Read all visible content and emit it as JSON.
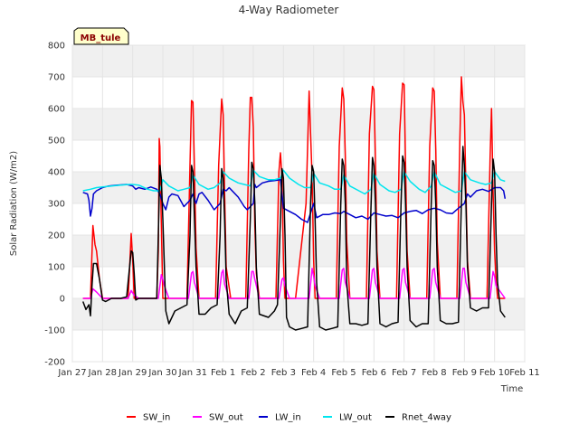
{
  "chart_data": {
    "type": "line",
    "title": "4-Way Radiometer",
    "xlabel": "Time",
    "ylabel": "Solar Radiation (W/m2)",
    "site_label": "MB_tule",
    "xlim": [
      0,
      15
    ],
    "ylim": [
      -200,
      800
    ],
    "yticks": [
      -200,
      -100,
      0,
      100,
      200,
      300,
      400,
      500,
      600,
      700,
      800
    ],
    "xticks": [
      {
        "value": 0,
        "label": "Jan 27"
      },
      {
        "value": 1,
        "label": "Jan 28"
      },
      {
        "value": 2,
        "label": "Jan 29"
      },
      {
        "value": 3,
        "label": "Jan 30"
      },
      {
        "value": 4,
        "label": "Jan 31"
      },
      {
        "value": 5,
        "label": "Feb 1"
      },
      {
        "value": 6,
        "label": "Feb 2"
      },
      {
        "value": 7,
        "label": "Feb 3"
      },
      {
        "value": 8,
        "label": "Feb 4"
      },
      {
        "value": 9,
        "label": "Feb 5"
      },
      {
        "value": 10,
        "label": "Feb 6"
      },
      {
        "value": 11,
        "label": "Feb 7"
      },
      {
        "value": 12,
        "label": "Feb 8"
      },
      {
        "value": 13,
        "label": "Feb 9"
      },
      {
        "value": 14,
        "label": "Feb 10"
      },
      {
        "value": 15,
        "label": "Feb 11"
      }
    ],
    "grid": true,
    "legend_position": "bottom",
    "series": [
      {
        "name": "SW_in",
        "color": "#ff0000",
        "x": [
          0.35,
          0.6,
          0.68,
          0.75,
          0.8,
          0.9,
          1.0,
          1.1,
          1.5,
          1.85,
          1.95,
          2.0,
          2.05,
          2.15,
          2.3,
          2.6,
          2.8,
          2.85,
          2.88,
          2.9,
          2.95,
          3.0,
          3.05,
          3.1,
          3.2,
          3.4,
          3.8,
          3.9,
          3.95,
          4.0,
          4.05,
          4.1,
          4.2,
          4.4,
          4.75,
          4.85,
          4.95,
          5.0,
          5.05,
          5.1,
          5.25,
          5.4,
          5.75,
          5.85,
          5.9,
          5.95,
          6.0,
          6.05,
          6.1,
          6.2,
          6.4,
          6.75,
          6.85,
          6.9,
          6.95,
          7.0,
          7.05,
          7.1,
          7.2,
          7.4,
          7.75,
          7.85,
          7.95,
          8.0,
          8.05,
          8.1,
          8.2,
          8.4,
          8.75,
          8.85,
          8.95,
          9.0,
          9.05,
          9.1,
          9.2,
          9.4,
          9.75,
          9.85,
          9.95,
          10.0,
          10.05,
          10.1,
          10.2,
          10.4,
          10.75,
          10.85,
          10.95,
          11.0,
          11.05,
          11.1,
          11.2,
          11.4,
          11.75,
          11.85,
          11.95,
          12.0,
          12.05,
          12.1,
          12.2,
          12.4,
          12.75,
          12.85,
          12.9,
          12.95,
          13.0,
          13.05,
          13.1,
          13.2,
          13.4,
          13.75,
          13.85,
          13.9,
          13.95,
          14.0,
          14.05,
          14.1,
          14.2,
          14.35
        ],
        "y": [
          0,
          0,
          230,
          170,
          150,
          60,
          0,
          0,
          0,
          0,
          205,
          120,
          0,
          0,
          0,
          0,
          0,
          150,
          505,
          480,
          240,
          0,
          0,
          0,
          0,
          0,
          0,
          420,
          625,
          620,
          400,
          160,
          0,
          0,
          0,
          420,
          630,
          580,
          330,
          100,
          0,
          0,
          0,
          470,
          635,
          635,
          540,
          230,
          80,
          0,
          0,
          0,
          400,
          460,
          380,
          120,
          0,
          0,
          0,
          0,
          300,
          655,
          380,
          120,
          0,
          0,
          0,
          0,
          0,
          480,
          665,
          630,
          450,
          180,
          0,
          0,
          0,
          520,
          670,
          660,
          440,
          150,
          0,
          0,
          0,
          520,
          680,
          675,
          420,
          150,
          0,
          0,
          0,
          480,
          665,
          655,
          470,
          180,
          0,
          0,
          0,
          500,
          700,
          620,
          580,
          350,
          120,
          0,
          0,
          0,
          440,
          600,
          340,
          150,
          60,
          0,
          0,
          0
        ]
      },
      {
        "name": "SW_out",
        "color": "#ff00ff",
        "x": [
          0.35,
          0.6,
          0.68,
          0.8,
          1.0,
          1.2,
          1.85,
          1.95,
          2.05,
          2.2,
          2.85,
          2.95,
          3.0,
          3.05,
          3.2,
          3.85,
          3.95,
          4.0,
          4.05,
          4.2,
          4.85,
          4.95,
          5.0,
          5.05,
          5.2,
          5.85,
          5.95,
          6.0,
          6.05,
          6.2,
          6.85,
          6.95,
          7.0,
          7.05,
          7.2,
          7.85,
          7.95,
          8.0,
          8.05,
          8.2,
          8.85,
          8.95,
          9.0,
          9.05,
          9.2,
          9.85,
          9.95,
          10.0,
          10.05,
          10.2,
          10.85,
          10.95,
          11.0,
          11.05,
          11.2,
          11.85,
          11.95,
          12.0,
          12.05,
          12.2,
          12.85,
          12.95,
          13.0,
          13.05,
          13.2,
          13.85,
          13.95,
          14.0,
          14.05,
          14.35
        ],
        "y": [
          0,
          0,
          30,
          20,
          0,
          0,
          0,
          25,
          10,
          0,
          0,
          75,
          60,
          40,
          0,
          0,
          80,
          85,
          50,
          0,
          0,
          80,
          90,
          45,
          0,
          0,
          85,
          85,
          60,
          0,
          0,
          60,
          65,
          40,
          0,
          0,
          95,
          70,
          40,
          0,
          0,
          90,
          95,
          50,
          0,
          0,
          90,
          95,
          50,
          0,
          0,
          90,
          95,
          50,
          0,
          0,
          90,
          95,
          50,
          0,
          0,
          95,
          95,
          50,
          0,
          0,
          85,
          70,
          40,
          0
        ]
      },
      {
        "name": "LW_in",
        "color": "#0000cc",
        "x": [
          0.35,
          0.5,
          0.55,
          0.6,
          0.65,
          0.7,
          0.8,
          1.0,
          1.2,
          1.5,
          1.8,
          2.0,
          2.1,
          2.2,
          2.4,
          2.6,
          2.8,
          2.9,
          3.0,
          3.1,
          3.2,
          3.3,
          3.5,
          3.7,
          3.9,
          4.0,
          4.1,
          4.2,
          4.3,
          4.5,
          4.7,
          4.9,
          5.0,
          5.1,
          5.2,
          5.5,
          5.7,
          5.8,
          6.0,
          6.05,
          6.1,
          6.3,
          6.5,
          6.7,
          6.9,
          7.0,
          7.2,
          7.4,
          7.6,
          7.8,
          7.9,
          8.0,
          8.1,
          8.3,
          8.5,
          8.7,
          8.9,
          9.0,
          9.2,
          9.4,
          9.6,
          9.8,
          10.0,
          10.2,
          10.4,
          10.6,
          10.8,
          11.0,
          11.2,
          11.4,
          11.6,
          11.8,
          12.0,
          12.2,
          12.4,
          12.6,
          12.8,
          13.0,
          13.1,
          13.2,
          13.4,
          13.6,
          13.8,
          14.0,
          14.2,
          14.3,
          14.35
        ],
        "y": [
          335,
          330,
          310,
          260,
          285,
          330,
          340,
          350,
          355,
          358,
          360,
          355,
          345,
          350,
          345,
          352,
          345,
          330,
          300,
          280,
          320,
          330,
          325,
          290,
          310,
          330,
          300,
          330,
          335,
          310,
          280,
          300,
          345,
          340,
          350,
          320,
          290,
          280,
          300,
          360,
          350,
          365,
          370,
          372,
          375,
          285,
          275,
          265,
          250,
          240,
          270,
          300,
          255,
          265,
          265,
          270,
          268,
          275,
          265,
          255,
          260,
          250,
          270,
          265,
          260,
          262,
          255,
          270,
          275,
          278,
          268,
          280,
          285,
          280,
          270,
          268,
          285,
          300,
          330,
          320,
          340,
          345,
          338,
          350,
          350,
          340,
          315
        ]
      },
      {
        "name": "LW_out",
        "color": "#00e5ee",
        "x": [
          0.35,
          0.6,
          0.8,
          1.0,
          1.3,
          1.6,
          1.9,
          2.0,
          2.2,
          2.5,
          2.7,
          2.9,
          3.0,
          3.2,
          3.5,
          3.7,
          3.9,
          4.0,
          4.2,
          4.5,
          4.7,
          4.9,
          5.0,
          5.2,
          5.5,
          5.7,
          5.9,
          6.0,
          6.2,
          6.5,
          6.7,
          6.9,
          7.0,
          7.2,
          7.5,
          7.7,
          7.9,
          8.0,
          8.2,
          8.5,
          8.7,
          8.9,
          9.0,
          9.2,
          9.5,
          9.7,
          9.9,
          10.0,
          10.2,
          10.5,
          10.7,
          10.9,
          11.0,
          11.2,
          11.5,
          11.7,
          11.9,
          12.0,
          12.2,
          12.5,
          12.7,
          12.9,
          13.0,
          13.2,
          13.5,
          13.7,
          13.9,
          14.0,
          14.2,
          14.35
        ],
        "y": [
          340,
          345,
          350,
          352,
          355,
          358,
          360,
          360,
          358,
          345,
          340,
          340,
          375,
          355,
          340,
          345,
          350,
          390,
          360,
          345,
          350,
          365,
          400,
          380,
          365,
          360,
          355,
          405,
          385,
          375,
          375,
          380,
          405,
          380,
          360,
          350,
          350,
          395,
          365,
          355,
          345,
          345,
          390,
          355,
          340,
          330,
          345,
          395,
          360,
          340,
          335,
          345,
          400,
          370,
          345,
          335,
          355,
          400,
          360,
          345,
          335,
          340,
          400,
          375,
          365,
          360,
          365,
          400,
          375,
          370
        ]
      },
      {
        "name": "Rnet_4way",
        "color": "#000000",
        "x": [
          0.35,
          0.45,
          0.55,
          0.6,
          0.65,
          0.7,
          0.8,
          0.9,
          1.0,
          1.1,
          1.3,
          1.6,
          1.8,
          1.95,
          2.0,
          2.05,
          2.1,
          2.2,
          2.5,
          2.8,
          2.85,
          2.9,
          2.95,
          3.0,
          3.05,
          3.1,
          3.2,
          3.4,
          3.6,
          3.8,
          3.9,
          3.95,
          4.0,
          4.05,
          4.1,
          4.2,
          4.4,
          4.6,
          4.8,
          4.9,
          4.95,
          5.0,
          5.05,
          5.1,
          5.2,
          5.4,
          5.6,
          5.8,
          5.9,
          5.95,
          6.0,
          6.05,
          6.1,
          6.2,
          6.5,
          6.7,
          6.8,
          6.9,
          6.95,
          7.0,
          7.05,
          7.1,
          7.2,
          7.4,
          7.6,
          7.8,
          7.9,
          7.95,
          8.0,
          8.05,
          8.1,
          8.2,
          8.4,
          8.6,
          8.8,
          8.9,
          8.95,
          9.0,
          9.05,
          9.1,
          9.2,
          9.4,
          9.6,
          9.8,
          9.9,
          9.95,
          10.0,
          10.05,
          10.1,
          10.2,
          10.4,
          10.6,
          10.8,
          10.9,
          10.95,
          11.0,
          11.05,
          11.1,
          11.2,
          11.4,
          11.6,
          11.8,
          11.9,
          11.95,
          12.0,
          12.05,
          12.1,
          12.2,
          12.4,
          12.6,
          12.8,
          12.9,
          12.95,
          13.0,
          13.05,
          13.1,
          13.2,
          13.4,
          13.6,
          13.8,
          13.9,
          13.95,
          14.0,
          14.05,
          14.1,
          14.2,
          14.35
        ],
        "y": [
          -10,
          -35,
          -20,
          -55,
          40,
          110,
          110,
          60,
          -5,
          -10,
          0,
          0,
          5,
          150,
          145,
          80,
          -5,
          0,
          0,
          0,
          200,
          420,
          380,
          250,
          100,
          -40,
          -80,
          -40,
          -30,
          -20,
          200,
          420,
          400,
          250,
          100,
          -50,
          -50,
          -30,
          -20,
          200,
          410,
          380,
          250,
          60,
          -50,
          -80,
          -40,
          -30,
          250,
          430,
          410,
          300,
          100,
          -50,
          -60,
          -40,
          -20,
          250,
          410,
          380,
          200,
          -60,
          -90,
          -100,
          -95,
          -90,
          300,
          420,
          400,
          250,
          50,
          -90,
          -100,
          -95,
          -90,
          300,
          440,
          420,
          300,
          50,
          -80,
          -80,
          -85,
          -80,
          280,
          445,
          420,
          300,
          100,
          -80,
          -90,
          -80,
          -75,
          300,
          450,
          430,
          300,
          100,
          -70,
          -90,
          -80,
          -80,
          300,
          435,
          420,
          300,
          100,
          -70,
          -80,
          -80,
          -75,
          300,
          480,
          420,
          300,
          100,
          -30,
          -40,
          -30,
          -30,
          300,
          440,
          400,
          200,
          50,
          -40,
          -60
        ]
      }
    ]
  }
}
